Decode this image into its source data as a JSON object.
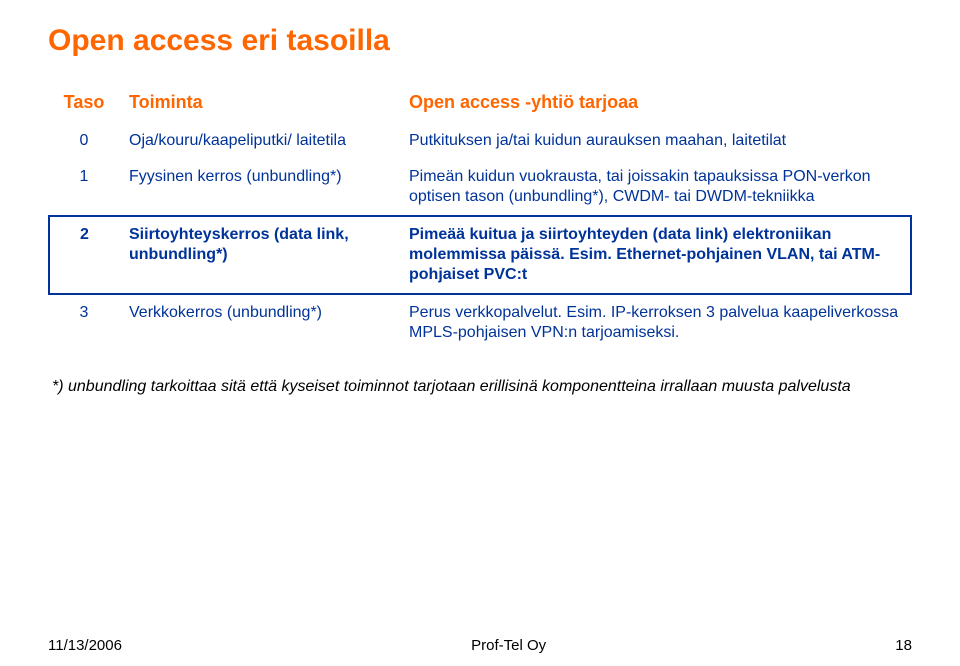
{
  "title": "Open access eri tasoilla",
  "headers": {
    "taso": "Taso",
    "toiminta": "Toiminta",
    "desc": "Open access -yhtiö tarjoaa"
  },
  "rows": [
    {
      "taso": "0",
      "toiminta": "Oja/kouru/kaapeliputki/\nlaitetila",
      "desc": "Putkituksen ja/tai kuidun aurauksen maahan, laitetilat",
      "bold": false
    },
    {
      "taso": "1",
      "toiminta": "Fyysinen kerros (unbundling*)",
      "desc": "Pimeän kuidun vuokrausta, tai joissakin tapauksissa PON-verkon optisen tason (unbundling*), CWDM- tai DWDM-tekniikka",
      "bold": false
    },
    {
      "taso": "2",
      "toiminta": "Siirtoyhteyskerros (data link, unbundling*)",
      "desc": "Pimeää kuitua ja siirtoyhteyden (data link) elektroniikan molemmissa päissä. Esim. Ethernet-pohjainen VLAN, tai ATM-pohjaiset PVC:t",
      "bold": true
    },
    {
      "taso": "3",
      "toiminta": "Verkkokerros (unbundling*)",
      "desc": "Perus verkkopalvelut. Esim. IP-kerroksen 3 palvelua kaapeliverkossa MPLS-pohjaisen VPN:n tarjoamiseksi.",
      "bold": false
    }
  ],
  "footnote": "*) unbundling tarkoittaa sitä että kyseiset toiminnot tarjotaan erillisinä komponentteina irrallaan muusta palvelusta",
  "footer": {
    "date": "11/13/2006",
    "center": "Prof-Tel Oy",
    "page": "18"
  },
  "colors": {
    "accent": "#ff6600",
    "text_blue": "#003399",
    "border_blue": "#003399",
    "background": "#ffffff",
    "black": "#000000"
  }
}
